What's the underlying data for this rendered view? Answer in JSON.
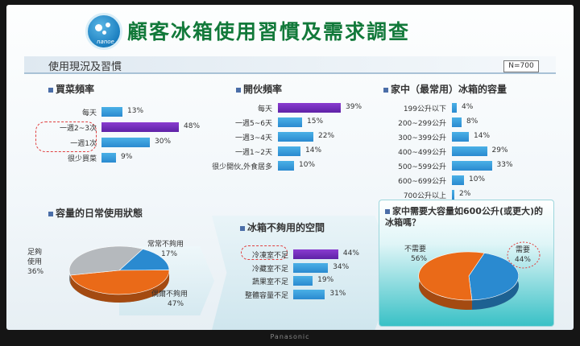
{
  "title": "顧客冰箱使用習慣及需求調查",
  "logo_text": "nanoe",
  "section": "使用現況及習慣",
  "n_label": "N=700",
  "brand_text": "Panasonic",
  "colors": {
    "bar": "#2a8ad0",
    "highlight": "#6a2bb8",
    "pie_orange": "#ea6a18",
    "pie_blue": "#2a8ad0",
    "pie_gray": "#b5b9bd",
    "title_green": "#12793a"
  },
  "chart_data": [
    {
      "type": "bar",
      "title": "買菜頻率",
      "categories": [
        "每天",
        "一週2~3次",
        "一週1次",
        "很少買菜"
      ],
      "values": [
        13,
        48,
        30,
        9
      ],
      "value_labels": [
        "13%",
        "48%",
        "30%",
        "9%"
      ],
      "highlight_index": 1
    },
    {
      "type": "bar",
      "title": "開伙頻率",
      "categories": [
        "每天",
        "一週5~6天",
        "一週3~4天",
        "一週1~2天",
        "很少開伙,外食居多"
      ],
      "values": [
        39,
        15,
        22,
        14,
        10
      ],
      "value_labels": [
        "39%",
        "15%",
        "22%",
        "14%",
        "10%"
      ],
      "highlight_index": 0
    },
    {
      "type": "bar",
      "title": "家中（最常用）冰箱的容量",
      "categories": [
        "199公升以下",
        "200~299公升",
        "300~399公升",
        "400~499公升",
        "500~599公升",
        "600~699公升",
        "700公升以上"
      ],
      "values": [
        4,
        8,
        14,
        29,
        33,
        10,
        2
      ],
      "value_labels": [
        "4%",
        "8%",
        "14%",
        "29%",
        "33%",
        "10%",
        "2%"
      ]
    },
    {
      "type": "pie",
      "title": "容量的日常使用狀態",
      "slices": [
        {
          "label": "常常不夠用",
          "value": 17,
          "value_label": "17%",
          "color": "#2a8ad0"
        },
        {
          "label": "偶爾不夠用",
          "value": 47,
          "value_label": "47%",
          "color": "#ea6a18"
        },
        {
          "label": "足夠使用",
          "value": 36,
          "value_label": "36%",
          "color": "#b5b9bd"
        }
      ]
    },
    {
      "type": "bar",
      "title": "冰箱不夠用的空間",
      "categories": [
        "冷凍室不足",
        "冷藏室不足",
        "蔬果室不足",
        "整體容量不足"
      ],
      "values": [
        44,
        34,
        19,
        31
      ],
      "value_labels": [
        "44%",
        "34%",
        "19%",
        "31%"
      ],
      "highlight_index": 0
    },
    {
      "type": "pie",
      "title": "家中需要大容量如600公升(或更大)的冰箱嗎？",
      "slices": [
        {
          "label": "需要",
          "value": 44,
          "value_label": "44%",
          "color": "#2a8ad0"
        },
        {
          "label": "不需要",
          "value": 56,
          "value_label": "56%",
          "color": "#ea6a18"
        }
      ]
    }
  ]
}
